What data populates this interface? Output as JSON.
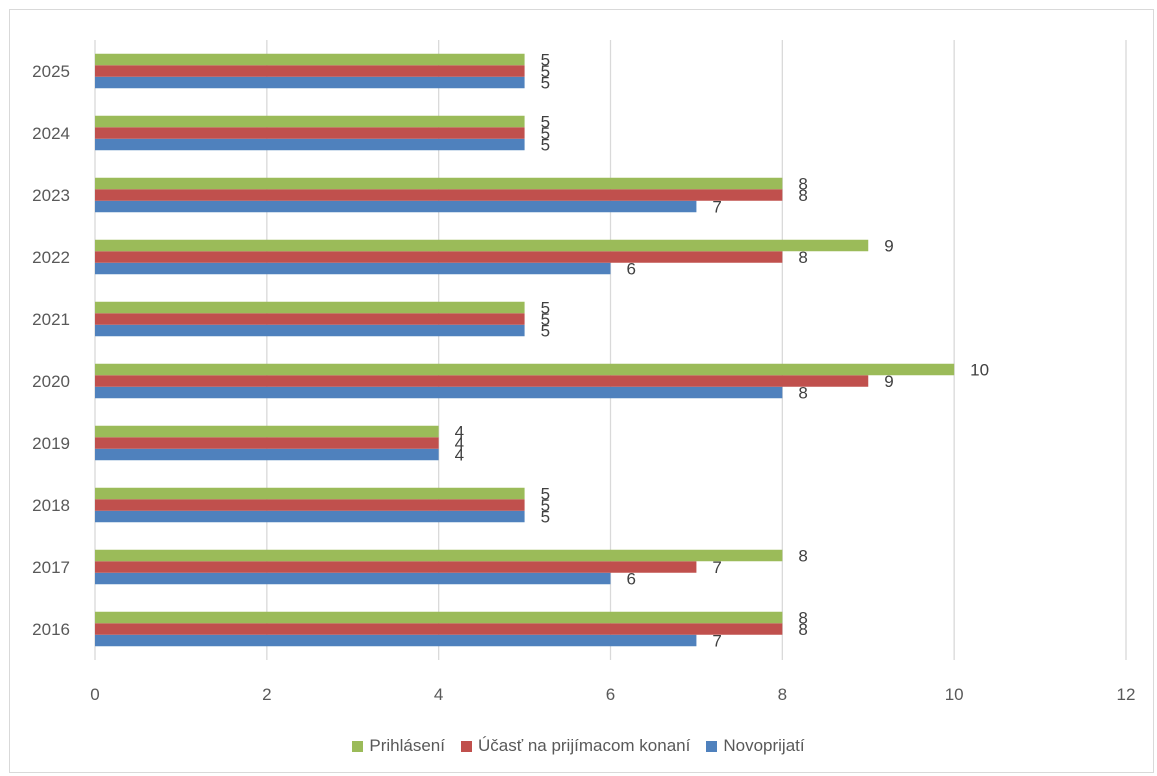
{
  "chart_data": {
    "type": "bar",
    "orientation": "horizontal",
    "categories": [
      "2016",
      "2017",
      "2018",
      "2019",
      "2020",
      "2021",
      "2022",
      "2023",
      "2024",
      "2025"
    ],
    "series": [
      {
        "name": "Novoprijatí",
        "color": "#4f81bd",
        "values": [
          7,
          6,
          5,
          4,
          8,
          5,
          6,
          7,
          5,
          5
        ]
      },
      {
        "name": "Účasť na prijímacom konaní",
        "color": "#c0504d",
        "values": [
          8,
          7,
          5,
          4,
          9,
          5,
          8,
          8,
          5,
          5
        ]
      },
      {
        "name": "Prihlásení",
        "color": "#9bbb59",
        "values": [
          8,
          8,
          5,
          4,
          10,
          5,
          9,
          8,
          5,
          5
        ]
      }
    ],
    "xlim": [
      0,
      12
    ],
    "xticks": [
      "0",
      "2",
      "4",
      "6",
      "8",
      "10",
      "12"
    ],
    "grid": true,
    "legend_position": "bottom",
    "data_labels": true
  },
  "legend": {
    "items": [
      {
        "label": "Prihlásení",
        "color": "#9bbb59"
      },
      {
        "label": "Účasť na prijímacom konaní",
        "color": "#c0504d"
      },
      {
        "label": "Novoprijatí",
        "color": "#4f81bd"
      }
    ]
  }
}
